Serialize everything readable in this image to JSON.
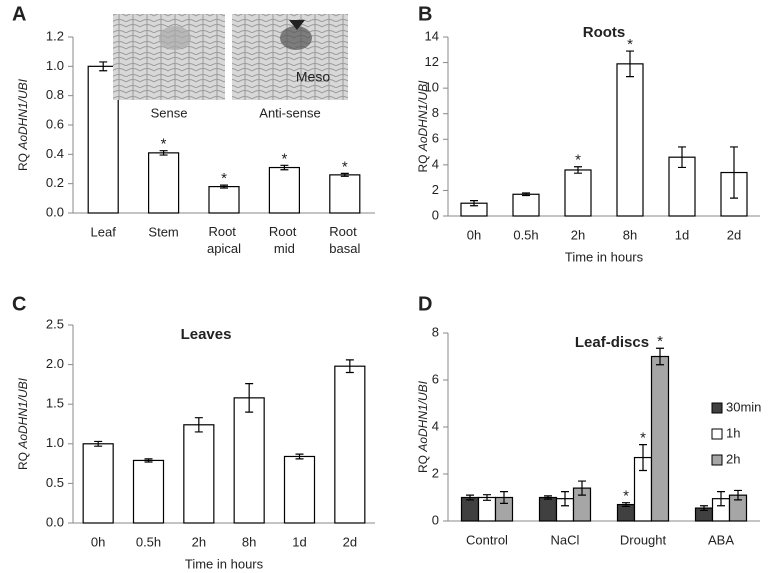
{
  "chart_data": [
    {
      "type": "bar",
      "panel_label": "A",
      "ylabel": "RQ AoDHN1/UBI",
      "categories": [
        "Leaf",
        "Stem",
        "Root apical",
        "Root mid",
        "Root basal"
      ],
      "values": [
        1.0,
        0.41,
        0.18,
        0.31,
        0.26
      ],
      "errors": [
        0.03,
        0.015,
        0.01,
        0.015,
        0.01
      ],
      "significant": [
        false,
        true,
        true,
        true,
        true
      ],
      "marker": "*",
      "color": "#ffffff",
      "ylim": [
        0,
        1.2
      ],
      "yticks": [
        {
          "value": 0,
          "label": "0.0"
        },
        0.2,
        0.4,
        0.6,
        0.8,
        {
          "value": 1,
          "label": "1.0"
        },
        1.2
      ],
      "images": [
        {
          "label": "Sense"
        },
        {
          "label": "Anti-sense",
          "annotation": "Meso"
        }
      ]
    },
    {
      "type": "bar",
      "panel_label": "B",
      "title": "Roots",
      "ylabel": "RQ AoDHN1/UBI",
      "xlabel": "Time in hours",
      "categories": [
        "0h",
        "0.5h",
        "2h",
        "8h",
        "1d",
        "2d"
      ],
      "values": [
        1.0,
        1.7,
        3.6,
        11.9,
        4.6,
        3.4
      ],
      "errors": [
        0.2,
        0.1,
        0.25,
        1.0,
        0.8,
        2.0
      ],
      "significant": [
        false,
        false,
        true,
        true,
        false,
        false
      ],
      "marker": "*",
      "color": "#ffffff",
      "ylim": [
        0,
        14
      ],
      "yticks": [
        0,
        2,
        4,
        6,
        8,
        10,
        12,
        14
      ]
    },
    {
      "type": "bar",
      "panel_label": "C",
      "title": "Leaves",
      "ylabel": "RQ AoDHN1/UBI",
      "xlabel": "Time in hours",
      "categories": [
        "0h",
        "0.5h",
        "2h",
        "8h",
        "1d",
        "2d"
      ],
      "values": [
        1.0,
        0.79,
        1.24,
        1.58,
        0.84,
        1.98
      ],
      "errors": [
        0.03,
        0.02,
        0.09,
        0.18,
        0.03,
        0.08
      ],
      "color": "#ffffff",
      "ylim": [
        0,
        2.5
      ],
      "yticks": [
        {
          "value": 0,
          "label": "0.0"
        },
        0.5,
        {
          "value": 1,
          "label": "1.0"
        },
        1.5,
        {
          "value": 2,
          "label": "2.0"
        },
        2.5
      ]
    },
    {
      "type": "grouped_bar",
      "panel_label": "D",
      "title": "Leaf-discs",
      "ylabel": "RQ AoDHN1/UBI",
      "categories": [
        "Control",
        "NaCl",
        "Drought",
        "ABA"
      ],
      "marker": "*",
      "legend": "right",
      "series": [
        {
          "name": "30min",
          "color": "#404040",
          "values": [
            1.0,
            1.0,
            0.7,
            0.55
          ],
          "errors": [
            0.1,
            0.07,
            0.08,
            0.1
          ],
          "significant": [
            false,
            false,
            true,
            false
          ]
        },
        {
          "name": "1h",
          "color": "#ffffff",
          "values": [
            1.0,
            0.95,
            2.7,
            0.95
          ],
          "errors": [
            0.12,
            0.3,
            0.55,
            0.3
          ],
          "significant": [
            false,
            false,
            true,
            false
          ]
        },
        {
          "name": "2h",
          "color": "#a6a6a6",
          "values": [
            1.0,
            1.4,
            7.0,
            1.1
          ],
          "errors": [
            0.25,
            0.3,
            0.35,
            0.2
          ],
          "significant": [
            false,
            false,
            true,
            false
          ]
        }
      ],
      "ylim": [
        0,
        8
      ],
      "yticks": [
        0,
        2,
        4,
        6,
        8
      ]
    }
  ]
}
